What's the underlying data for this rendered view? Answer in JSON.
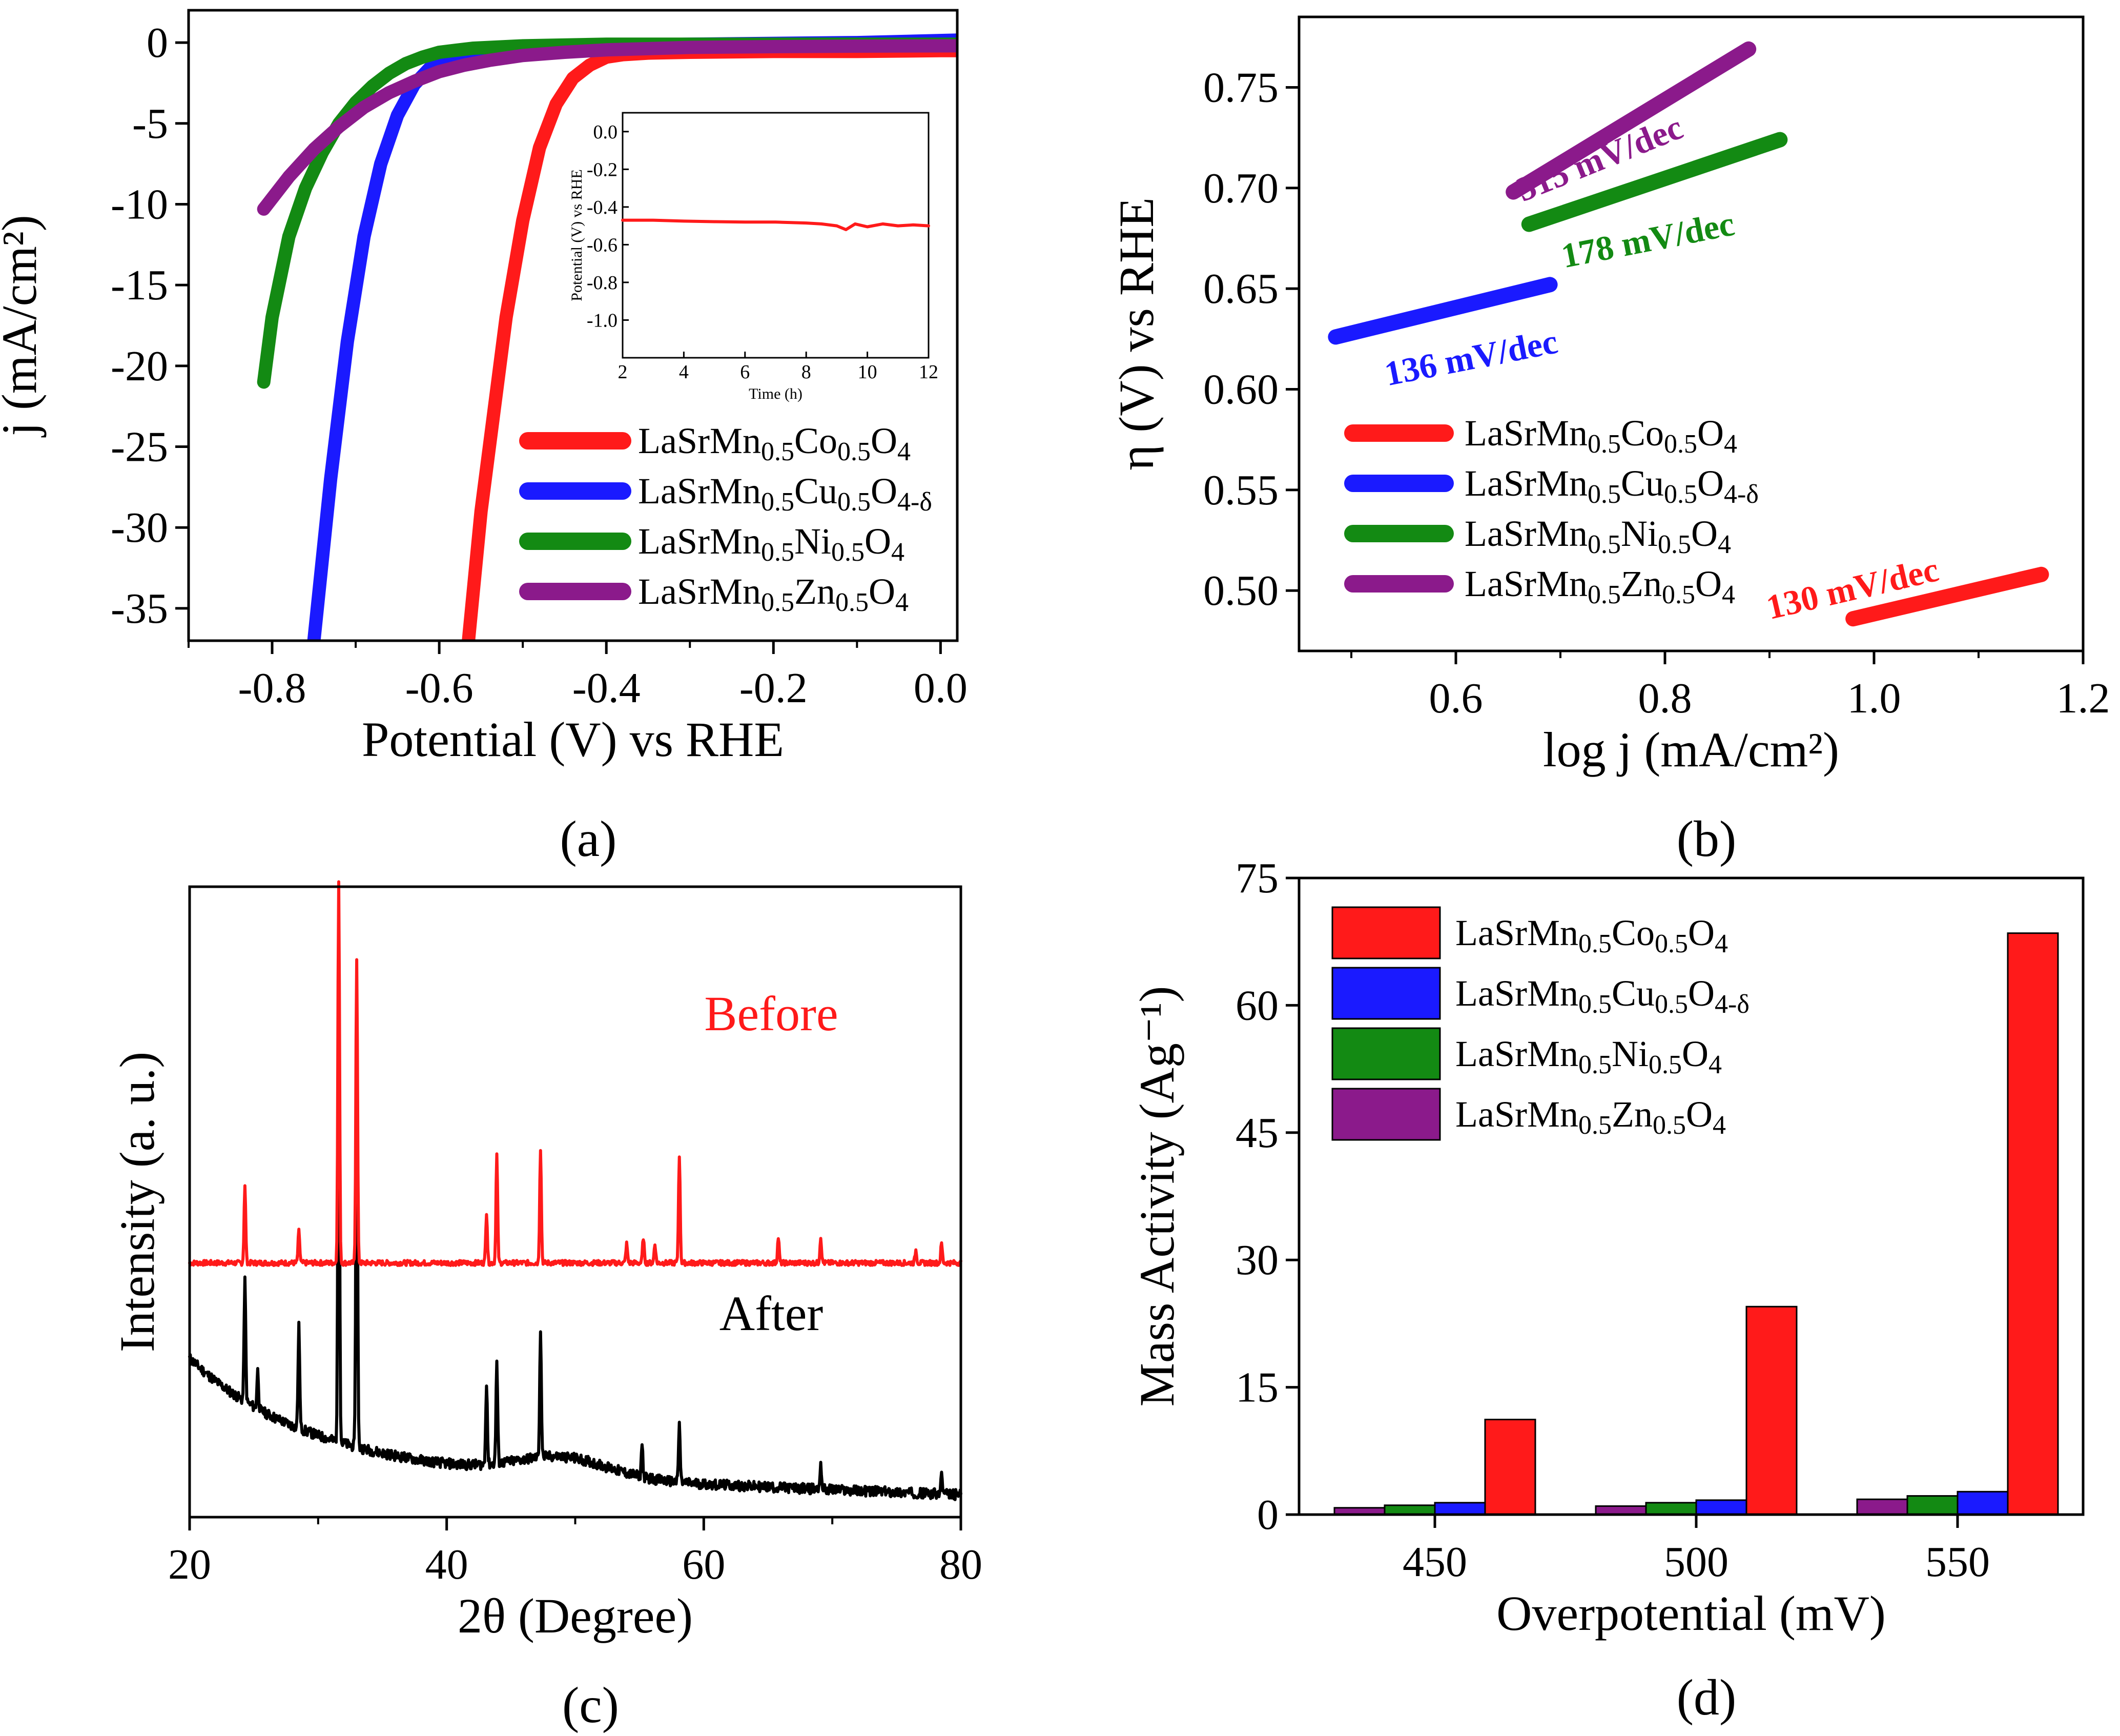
{
  "chart_data": [
    {
      "id": "a",
      "panel_label": "(a)",
      "type": "line",
      "xlabel": "Potential (V) vs RHE",
      "ylabel": "j (mA/cm²)",
      "xlim": [
        -0.9,
        0.02
      ],
      "ylim": [
        -37,
        2
      ],
      "xticks": [
        "-0.8",
        "-0.6",
        "-0.4",
        "-0.2",
        "0.0"
      ],
      "yticks": [
        "0",
        "-5",
        "-10",
        "-15",
        "-20",
        "-25",
        "-30",
        "-35"
      ],
      "series": [
        {
          "name": "LaSrMn0.5Co0.5O4",
          "color": "#ff1a1a",
          "x": [
            -0.565,
            -0.55,
            -0.52,
            -0.5,
            -0.48,
            -0.46,
            -0.44,
            -0.42,
            -0.4,
            -0.38,
            -0.35,
            -0.3,
            -0.2,
            -0.1,
            0.0,
            0.02
          ],
          "y": [
            -37,
            -29,
            -17,
            -11,
            -6.5,
            -3.8,
            -2.2,
            -1.4,
            -0.9,
            -0.75,
            -0.65,
            -0.6,
            -0.55,
            -0.55,
            -0.5,
            -0.5
          ]
        },
        {
          "name": "LaSrMn0.5Cu0.5O4-δ",
          "color": "#1a1aff",
          "x": [
            -0.75,
            -0.73,
            -0.71,
            -0.69,
            -0.67,
            -0.65,
            -0.63,
            -0.61,
            -0.59,
            -0.56,
            -0.52,
            -0.45,
            -0.3,
            -0.1,
            0.02
          ],
          "y": [
            -37,
            -27,
            -18.5,
            -12,
            -7.5,
            -4.5,
            -2.6,
            -1.5,
            -0.9,
            -0.5,
            -0.3,
            -0.2,
            -0.1,
            0,
            0.15
          ]
        },
        {
          "name": "LaSrMn0.5Ni0.5O4",
          "color": "#138a13",
          "x": [
            -0.81,
            -0.8,
            -0.78,
            -0.76,
            -0.74,
            -0.72,
            -0.7,
            -0.68,
            -0.66,
            -0.64,
            -0.62,
            -0.6,
            -0.56,
            -0.5,
            -0.4,
            -0.2,
            0.02
          ],
          "y": [
            -21,
            -17,
            -12,
            -9,
            -6.8,
            -5,
            -3.7,
            -2.7,
            -1.9,
            -1.3,
            -0.9,
            -0.6,
            -0.35,
            -0.2,
            -0.1,
            -0.1,
            -0.1
          ]
        },
        {
          "name": "LaSrMn0.5Zn0.5O4",
          "color": "#8b1a8b",
          "x": [
            -0.81,
            -0.78,
            -0.75,
            -0.72,
            -0.69,
            -0.66,
            -0.63,
            -0.6,
            -0.57,
            -0.54,
            -0.5,
            -0.45,
            -0.4,
            -0.3,
            -0.2,
            -0.1,
            0.02
          ],
          "y": [
            -10.3,
            -8.3,
            -6.6,
            -5.2,
            -4,
            -3.1,
            -2.4,
            -1.8,
            -1.4,
            -1.1,
            -0.8,
            -0.6,
            -0.45,
            -0.3,
            -0.25,
            -0.22,
            -0.2
          ]
        }
      ],
      "inset": {
        "xlabel": "Time (h)",
        "ylabel": "Potential (V) vs RHE",
        "xlim": [
          2,
          12
        ],
        "ylim": [
          -1.2,
          0.1
        ],
        "xticks": [
          "2",
          "4",
          "6",
          "8",
          "10",
          "12"
        ],
        "yticks": [
          "0.0",
          "-0.2",
          "-0.4",
          "-0.6",
          "-0.8",
          "-1.0"
        ],
        "x": [
          2,
          3,
          4,
          5,
          6,
          7,
          8,
          8.5,
          9,
          9.3,
          9.6,
          10,
          10.5,
          11,
          11.5,
          12
        ],
        "y": [
          -0.47,
          -0.47,
          -0.475,
          -0.478,
          -0.48,
          -0.48,
          -0.485,
          -0.49,
          -0.5,
          -0.52,
          -0.49,
          -0.505,
          -0.49,
          -0.5,
          -0.495,
          -0.5
        ],
        "color": "#ff1a1a"
      }
    },
    {
      "id": "b",
      "panel_label": "(b)",
      "type": "line",
      "xlabel": "log j (mA/cm²)",
      "ylabel": "η (V) vs RHE",
      "xlim": [
        0.45,
        1.2
      ],
      "ylim": [
        0.47,
        0.785
      ],
      "xticks": [
        "0.6",
        "0.8",
        "1.0",
        "1.2"
      ],
      "yticks": [
        "0.50",
        "0.55",
        "0.60",
        "0.65",
        "0.70",
        "0.75"
      ],
      "series": [
        {
          "name": "LaSrMn0.5Co0.5O4",
          "color": "#ff1a1a",
          "x": [
            0.98,
            1.16
          ],
          "y": [
            0.486,
            0.508
          ],
          "slope_label": "130 mV/dec"
        },
        {
          "name": "LaSrMn0.5Cu0.5O4-δ",
          "color": "#1a1aff",
          "x": [
            0.485,
            0.69
          ],
          "y": [
            0.626,
            0.652
          ],
          "slope_label": "136 mV/dec"
        },
        {
          "name": "LaSrMn0.5Ni0.5O4",
          "color": "#138a13",
          "x": [
            0.67,
            0.91
          ],
          "y": [
            0.682,
            0.724
          ],
          "slope_label": "178 mV/dec"
        },
        {
          "name": "LaSrMn0.5Zn0.5O4",
          "color": "#8b1a8b",
          "x": [
            0.655,
            0.88
          ],
          "y": [
            0.698,
            0.769
          ],
          "slope_label": "315 mV/dec"
        }
      ]
    },
    {
      "id": "c",
      "panel_label": "(c)",
      "type": "line",
      "xlabel": "2θ (Degree)",
      "ylabel": "Intensity (a. u.)",
      "xlim": [
        20,
        80
      ],
      "xticks": [
        "20",
        "40",
        "60",
        "80"
      ],
      "annotations": {
        "before": "Before",
        "after": "After"
      },
      "before_peaks": [
        [
          24.3,
          0.12
        ],
        [
          28.5,
          0.05
        ],
        [
          31.6,
          0.6
        ],
        [
          33.0,
          0.48
        ],
        [
          43.1,
          0.08
        ],
        [
          43.9,
          0.17
        ],
        [
          47.3,
          0.18
        ],
        [
          54,
          0.03
        ],
        [
          55.3,
          0.04
        ],
        [
          56.2,
          0.03
        ],
        [
          58.1,
          0.17
        ],
        [
          65.8,
          0.04
        ],
        [
          69.1,
          0.04
        ],
        [
          76.5,
          0.02
        ],
        [
          78.5,
          0.03
        ]
      ],
      "after_peaks": [
        [
          24.3,
          0.19
        ],
        [
          25.3,
          0.06
        ],
        [
          28.5,
          0.16
        ],
        [
          31.6,
          0.75
        ],
        [
          33.0,
          0.69
        ],
        [
          43.1,
          0.13
        ],
        [
          43.9,
          0.16
        ],
        [
          47.3,
          0.2
        ],
        [
          55.2,
          0.05
        ],
        [
          58.1,
          0.09
        ],
        [
          69.1,
          0.04
        ],
        [
          78.5,
          0.03
        ]
      ]
    },
    {
      "id": "d",
      "panel_label": "(d)",
      "type": "bar",
      "xlabel": "Overpotential (mV)",
      "ylabel": "Mass Activity (Ag⁻¹)",
      "ylim": [
        0,
        75
      ],
      "yticks": [
        "0",
        "15",
        "30",
        "45",
        "60",
        "75"
      ],
      "categories": [
        "450",
        "500",
        "550"
      ],
      "series": [
        {
          "name": "LaSrMn0.5Zn0.5O4",
          "color": "#8b1a8b",
          "values": [
            0.8,
            1.0,
            1.8
          ]
        },
        {
          "name": "LaSrMn0.5Ni0.5O4",
          "color": "#138a13",
          "values": [
            1.1,
            1.4,
            2.2
          ]
        },
        {
          "name": "LaSrMn0.5Cu0.5O4-δ",
          "color": "#1a1aff",
          "values": [
            1.4,
            1.7,
            2.7
          ]
        },
        {
          "name": "LaSrMn0.5Co0.5O4",
          "color": "#ff1a1a",
          "values": [
            11.2,
            24.5,
            68.5
          ]
        }
      ]
    }
  ],
  "legend": [
    {
      "base": "LaSrMn",
      "s1": "0.5",
      "m1": "Co",
      "s2": "0.5",
      "m2": "O",
      "s3": "4",
      "color": "#ff1a1a"
    },
    {
      "base": "LaSrMn",
      "s1": "0.5",
      "m1": "Cu",
      "s2": "0.5",
      "m2": "O",
      "s3": "4-δ",
      "color": "#1a1aff"
    },
    {
      "base": "LaSrMn",
      "s1": "0.5",
      "m1": "Ni",
      "s2": "0.5",
      "m2": "O",
      "s3": "4",
      "color": "#138a13"
    },
    {
      "base": "LaSrMn",
      "s1": "0.5",
      "m1": "Zn",
      "s2": "0.5",
      "m2": "O",
      "s3": "4",
      "color": "#8b1a8b"
    }
  ]
}
